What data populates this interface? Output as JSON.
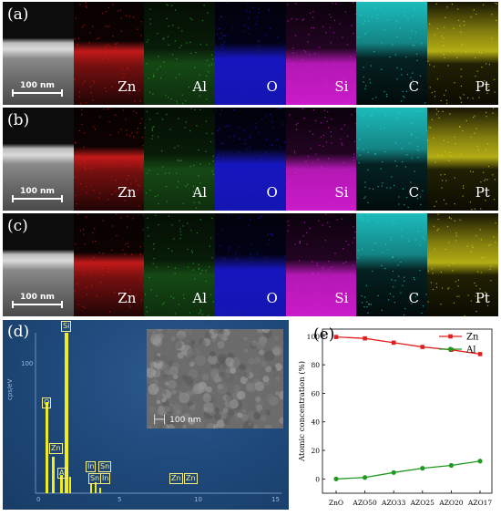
{
  "mapping_rows": [
    {
      "tag": "(a)",
      "scale_label": "100 nm"
    },
    {
      "tag": "(b)",
      "scale_label": "100 nm"
    },
    {
      "tag": "(c)",
      "scale_label": "100 nm"
    }
  ],
  "elements": [
    {
      "label": "Zn",
      "color": "#d81c1c"
    },
    {
      "label": "Al",
      "color": "#35b535"
    },
    {
      "label": "O",
      "color": "#1a1ae0"
    },
    {
      "label": "Si",
      "color": "#e01ee0"
    },
    {
      "label": "C",
      "color": "#22dcdc"
    },
    {
      "label": "Pt",
      "color": "#e0d81a"
    }
  ],
  "eds": {
    "tag": "(d)",
    "y_unit": "cps/eV",
    "y_tick": "100",
    "x_ticks": [
      "0",
      "5",
      "10",
      "15"
    ],
    "inset_scale": "100 nm",
    "peaks": [
      "O",
      "Si",
      "Zn",
      "Al",
      "In",
      "Sn",
      "Sn",
      "In",
      "Zn",
      "Zn"
    ]
  },
  "conc_panel": {
    "tag": "(e)"
  },
  "chart_data": {
    "type": "line",
    "title": "",
    "xlabel": "",
    "ylabel": "Atomic concentration (%)",
    "categories": [
      "ZnO",
      "AZO50",
      "AZO33",
      "AZO25",
      "AZO20",
      "AZO17"
    ],
    "ylim": [
      -10,
      105
    ],
    "yticks": [
      "0",
      "20",
      "40",
      "60",
      "80",
      "100"
    ],
    "legend_position": "top-right",
    "grid": false,
    "series": [
      {
        "name": "Zn",
        "color": "#e02020",
        "marker": "square",
        "values": [
          99.5,
          98.5,
          95.5,
          92.5,
          90.5,
          87.5
        ]
      },
      {
        "name": "Al",
        "color": "#1f9a1f",
        "marker": "circle",
        "values": [
          0,
          1,
          4.5,
          7.5,
          9.5,
          12.5
        ]
      }
    ]
  }
}
